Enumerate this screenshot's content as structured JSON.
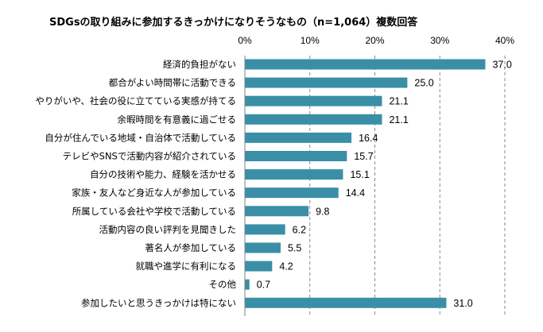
{
  "chart_data": {
    "type": "bar",
    "orientation": "horizontal",
    "title": "SDGsの取り組みに参加するきっかけになりそうなもの（n=1,064）複数回答",
    "xlabel": "",
    "ylabel": "",
    "xlim": [
      0,
      40
    ],
    "x_ticks": [
      "0%",
      "10%",
      "20%",
      "30%",
      "40%"
    ],
    "x_tick_values": [
      0,
      10,
      20,
      30,
      40
    ],
    "grid": "vertical dashed",
    "tick_position": "top",
    "bar_color": "#3a8fa6",
    "categories": [
      "経済的負担がない",
      "都合がよい時間帯に活動できる",
      "やりがいや、社会の役に立てている実感が持てる",
      "余暇時間を有意義に過ごせる",
      "自分が住んでいる地域・自治体で活動している",
      "テレビやSNSで活動内容が紹介されている",
      "自分の技術や能力、経験を活かせる",
      "家族・友人など身近な人が参加している",
      "所属している会社や学校で活動している",
      "活動内容の良い評判を見聞きした",
      "著名人が参加している",
      "就職や進学に有利になる",
      "その他",
      "参加したいと思うきっかけは特にない"
    ],
    "values": [
      37.0,
      25.0,
      21.1,
      21.1,
      16.4,
      15.7,
      15.1,
      14.4,
      9.8,
      6.2,
      5.5,
      4.2,
      0.7,
      31.0
    ],
    "value_labels": [
      "37.0",
      "25.0",
      "21.1",
      "21.1",
      "16.4",
      "15.7",
      "15.1",
      "14.4",
      "9.8",
      "6.2",
      "5.5",
      "4.2",
      "0.7",
      "31.0"
    ]
  }
}
